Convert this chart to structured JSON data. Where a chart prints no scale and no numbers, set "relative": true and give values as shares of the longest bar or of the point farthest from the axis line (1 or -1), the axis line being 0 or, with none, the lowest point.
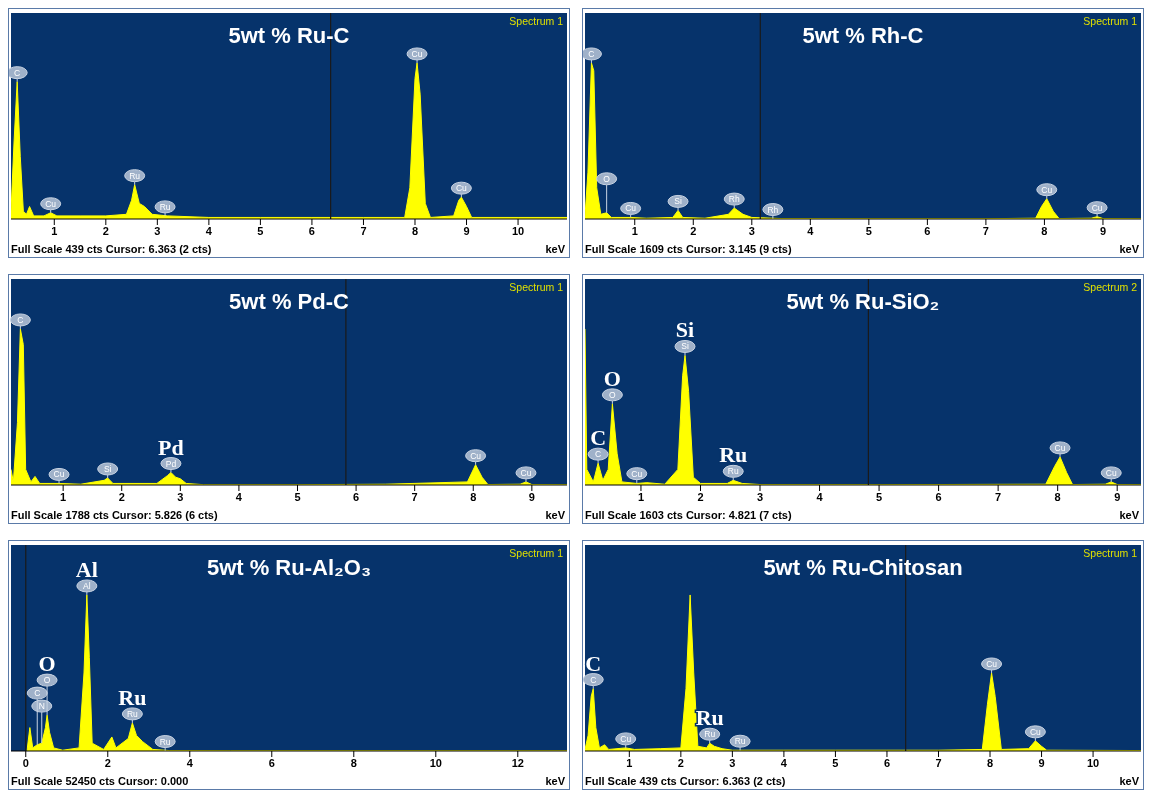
{
  "chart_data": [
    {
      "type": "area",
      "relative": true,
      "title": "5wt % Ru-C",
      "xlabel": "keV",
      "color": "#ffff00",
      "xlim": [
        0.16,
        10.95
      ],
      "xticks": [
        1,
        2,
        3,
        4,
        5,
        6,
        7,
        8,
        9,
        10
      ],
      "x": [
        0.16,
        0.22,
        0.28,
        0.34,
        0.4,
        0.46,
        0.52,
        0.6,
        0.8,
        0.93,
        1.05,
        1.5,
        2.0,
        2.4,
        2.5,
        2.56,
        2.65,
        2.75,
        2.9,
        3.2,
        4,
        5,
        6,
        7,
        7.8,
        7.9,
        8.0,
        8.04,
        8.1,
        8.2,
        8.3,
        8.75,
        8.85,
        8.9,
        9.0,
        9.1,
        10,
        10.95
      ],
      "values": [
        0.05,
        0.5,
        0.88,
        0.4,
        0.05,
        0.03,
        0.08,
        0.02,
        0.02,
        0.04,
        0.02,
        0.02,
        0.02,
        0.03,
        0.12,
        0.22,
        0.1,
        0.08,
        0.03,
        0.02,
        0.01,
        0.01,
        0.01,
        0.01,
        0.01,
        0.2,
        0.9,
        1,
        0.8,
        0.1,
        0.01,
        0.02,
        0.12,
        0.14,
        0.08,
        0.01,
        0.01,
        0.01
      ],
      "ref_lines": [
        {
          "axis": "x",
          "value": 6.363,
          "color": "#1a1a1a"
        }
      ],
      "annotations": [
        "Spectrum 1",
        "Full Scale 439 cts Cursor: 6.363  (2 cts)",
        {
          "text": "C",
          "x": 0.28,
          "y": 0.88
        },
        {
          "text": "Cu",
          "x": 0.93,
          "y": 0.04
        },
        {
          "text": "Ru",
          "x": 2.56,
          "y": 0.22
        },
        {
          "text": "Ru",
          "x": 3.15,
          "y": 0.02
        },
        {
          "text": "Cu",
          "x": 8.04,
          "y": 1
        },
        {
          "text": "Cu",
          "x": 8.9,
          "y": 0.14
        }
      ]
    },
    {
      "type": "area",
      "relative": true,
      "title": "5wt % Rh-C",
      "xlabel": "keV",
      "color": "#ffff00",
      "xlim": [
        0.15,
        9.65
      ],
      "xticks": [
        1,
        2,
        3,
        4,
        5,
        6,
        7,
        8,
        9
      ],
      "x": [
        0.15,
        0.2,
        0.26,
        0.3,
        0.35,
        0.42,
        0.52,
        0.6,
        0.93,
        1.2,
        1.65,
        1.74,
        1.82,
        2.2,
        2.6,
        2.7,
        2.85,
        3.0,
        3.5,
        5,
        7,
        7.85,
        7.95,
        8.04,
        8.15,
        8.25,
        8.8,
        8.9,
        9.0,
        9.65
      ],
      "values": [
        0.02,
        0.3,
        1,
        0.95,
        0.2,
        0.03,
        0.04,
        0.01,
        0.01,
        0.005,
        0.01,
        0.055,
        0.01,
        0.005,
        0.03,
        0.07,
        0.03,
        0.01,
        0.003,
        0.002,
        0.002,
        0.005,
        0.08,
        0.13,
        0.05,
        0.003,
        0.005,
        0.015,
        0.003,
        0.002
      ],
      "ref_lines": [
        {
          "axis": "x",
          "value": 3.145,
          "color": "#1a1a1a"
        }
      ],
      "annotations": [
        "Spectrum 1",
        "Full Scale 1609 cts Cursor: 3.145  (9 cts)",
        {
          "text": "C",
          "x": 0.26,
          "y": 1
        },
        {
          "text": "O",
          "x": 0.52,
          "y": 0.04
        },
        {
          "text": "Cu",
          "x": 0.93,
          "y": 0.01
        },
        {
          "text": "Si",
          "x": 1.74,
          "y": 0.055
        },
        {
          "text": "Rh",
          "x": 2.7,
          "y": 0.07
        },
        {
          "text": "Rh",
          "x": 3.36,
          "y": 0.003
        },
        {
          "text": "Cu",
          "x": 8.04,
          "y": 0.13
        },
        {
          "text": "Cu",
          "x": 8.9,
          "y": 0.015
        }
      ]
    },
    {
      "type": "area",
      "relative": true,
      "title": "5wt % Pd-C",
      "xlabel": "keV",
      "color": "#ffff00",
      "xlim": [
        0.11,
        9.6
      ],
      "xticks": [
        1,
        2,
        3,
        4,
        5,
        6,
        7,
        8,
        9
      ],
      "x": [
        0.11,
        0.15,
        0.22,
        0.27,
        0.32,
        0.36,
        0.45,
        0.52,
        0.6,
        0.93,
        1.3,
        1.7,
        1.76,
        1.85,
        2.6,
        2.78,
        2.84,
        2.92,
        3.0,
        3.1,
        3.4,
        5,
        6.5,
        7.9,
        8.04,
        8.15,
        8.25,
        8.8,
        8.9,
        9.0,
        9.6
      ],
      "values": [
        0.1,
        0.02,
        0.4,
        1,
        0.9,
        0.1,
        0.02,
        0.055,
        0.01,
        0.01,
        0.005,
        0.03,
        0.045,
        0.01,
        0.01,
        0.06,
        0.08,
        0.05,
        0.04,
        0.01,
        0.002,
        0.002,
        0.005,
        0.02,
        0.13,
        0.05,
        0.003,
        0.005,
        0.02,
        0.003,
        0.002
      ],
      "ref_lines": [
        {
          "axis": "x",
          "value": 5.826,
          "color": "#1a1a1a"
        }
      ],
      "annotations": [
        "Spectrum 1",
        "Full Scale 1788 cts Cursor: 5.826  (6 cts)",
        {
          "text": "C",
          "x": 0.27,
          "y": 1
        },
        {
          "text": "Cu",
          "x": 0.93,
          "y": 0.01
        },
        {
          "text": "Si",
          "x": 1.76,
          "y": 0.045
        },
        {
          "text": "Pd",
          "x": 2.84,
          "y": 0.08
        },
        {
          "text": "Pd",
          "x": 2.84,
          "y": 0.08
        },
        {
          "text": "Cu",
          "x": 8.04,
          "y": 0.13
        },
        {
          "text": "Cu",
          "x": 8.9,
          "y": 0.02
        }
      ]
    },
    {
      "type": "area",
      "relative": true,
      "title": "5wt % Ru-SiO₂",
      "xlabel": "keV",
      "color": "#ffff00",
      "xlim": [
        0.06,
        9.4
      ],
      "xticks": [
        1,
        2,
        3,
        4,
        5,
        6,
        7,
        8,
        9
      ],
      "x": [
        0.06,
        0.09,
        0.2,
        0.28,
        0.36,
        0.45,
        0.52,
        0.6,
        0.68,
        0.93,
        1.1,
        1.4,
        1.62,
        1.7,
        1.74,
        1.8,
        1.88,
        2.0,
        2.45,
        2.55,
        2.7,
        3,
        5,
        7.8,
        7.95,
        8.04,
        8.15,
        8.25,
        8.8,
        8.9,
        9.0,
        9.4
      ],
      "values": [
        1,
        0.1,
        0.02,
        0.14,
        0.03,
        0.1,
        0.52,
        0.2,
        0.02,
        0.01,
        0.015,
        0.005,
        0.1,
        0.7,
        0.83,
        0.6,
        0.05,
        0.01,
        0.01,
        0.03,
        0.01,
        0.003,
        0.002,
        0.005,
        0.12,
        0.18,
        0.08,
        0.003,
        0.005,
        0.02,
        0.003,
        0.002
      ],
      "ref_lines": [
        {
          "axis": "x",
          "value": 4.821,
          "color": "#1a1a1a"
        }
      ],
      "annotations": [
        "Spectrum 2",
        "Full Scale 1603 cts Cursor: 4.821  (7 cts)",
        {
          "text": "C",
          "x": 0.28,
          "y": 0.14
        },
        {
          "text": "C",
          "x": 0.28,
          "y": 0.14
        },
        {
          "text": "O",
          "x": 0.52,
          "y": 0.52
        },
        {
          "text": "O",
          "x": 0.52,
          "y": 0.52
        },
        {
          "text": "Cu",
          "x": 0.93,
          "y": 0.01
        },
        {
          "text": "Si",
          "x": 1.74,
          "y": 0.83
        },
        {
          "text": "Si",
          "x": 1.74,
          "y": 0.83
        },
        {
          "text": "Ru",
          "x": 2.55,
          "y": 0.03
        },
        {
          "text": "Ru",
          "x": 2.55,
          "y": 0.03
        },
        {
          "text": "Cu",
          "x": 8.04,
          "y": 0.18
        },
        {
          "text": "Cu",
          "x": 8.9,
          "y": 0.02
        }
      ]
    },
    {
      "type": "area",
      "relative": true,
      "title": "5wt % Ru-Al₂O₃",
      "xlabel": "keV",
      "color": "#ffff00",
      "xlim": [
        -0.36,
        13.2
      ],
      "xticks": [
        0,
        2,
        4,
        6,
        8,
        10,
        12
      ],
      "x": [
        0.03,
        0.1,
        0.17,
        0.28,
        0.39,
        0.48,
        0.52,
        0.58,
        0.68,
        0.9,
        1.3,
        1.42,
        1.49,
        1.55,
        1.62,
        1.9,
        2.05,
        2.1,
        2.2,
        2.5,
        2.6,
        2.7,
        2.85,
        3.1,
        3.5,
        5,
        13.2
      ],
      "values": [
        0,
        0.15,
        0.02,
        0.04,
        0.05,
        0.15,
        0.23,
        0.12,
        0.02,
        0.005,
        0.02,
        0.5,
        1,
        0.6,
        0.05,
        0.01,
        0.07,
        0.09,
        0.02,
        0.08,
        0.18,
        0.1,
        0.06,
        0.01,
        0.003,
        0.002,
        0.002
      ],
      "ref_lines": [
        {
          "axis": "x",
          "value": 0,
          "color": "#1a1a1a"
        }
      ],
      "annotations": [
        "Spectrum 1",
        "Full Scale 52450 cts Cursor: 0.000",
        {
          "text": "N",
          "x": 0.39,
          "y": 0.05
        },
        {
          "text": "C",
          "x": 0.28,
          "y": 0.04
        },
        {
          "text": "O",
          "x": 0.52,
          "y": 0.23
        },
        {
          "text": "O",
          "x": 0.52,
          "y": 0.23
        },
        {
          "text": "Al",
          "x": 1.49,
          "y": 1
        },
        {
          "text": "Al",
          "x": 1.49,
          "y": 1
        },
        {
          "text": "Ru",
          "x": 2.6,
          "y": 0.18
        },
        {
          "text": "Ru",
          "x": 2.6,
          "y": 0.18
        },
        {
          "text": "Ru",
          "x": 3.4,
          "y": 0.003
        }
      ]
    },
    {
      "type": "area",
      "relative": true,
      "title": "5wt % Ru-Chitosan",
      "xlabel": "keV",
      "color": "#ffff00",
      "xlim": [
        0.14,
        10.93
      ],
      "xticks": [
        1,
        2,
        3,
        4,
        5,
        6,
        7,
        8,
        9,
        10
      ],
      "x": [
        0.14,
        0.2,
        0.26,
        0.3,
        0.35,
        0.42,
        0.52,
        0.6,
        0.93,
        1.1,
        1.6,
        2.0,
        2.1,
        2.18,
        2.25,
        2.33,
        2.5,
        2.56,
        2.65,
        2.8,
        3.0,
        4,
        5,
        6,
        7,
        7.85,
        7.95,
        8.03,
        8.1,
        8.22,
        8.75,
        8.88,
        9.0,
        9.1,
        10.93
      ],
      "values": [
        0.01,
        0.1,
        0.35,
        0.4,
        0.15,
        0.02,
        0.04,
        0.01,
        0.02,
        0.01,
        0.015,
        0.02,
        0.4,
        1,
        0.5,
        0.03,
        0.02,
        0.05,
        0.03,
        0.015,
        0.005,
        0.005,
        0.005,
        0.005,
        0.005,
        0.01,
        0.3,
        0.5,
        0.35,
        0.01,
        0.015,
        0.065,
        0.03,
        0.005,
        0.003
      ],
      "ref_lines": [
        {
          "axis": "x",
          "value": 6.363,
          "color": "#1a1a1a"
        }
      ],
      "annotations": [
        "Spectrum 1",
        "Full Scale 439 cts Cursor: 6.363  (2 cts)",
        {
          "text": "C",
          "x": 0.3,
          "y": 0.4
        },
        {
          "text": "C",
          "x": 0.3,
          "y": 0.4
        },
        {
          "text": "Cu",
          "x": 0.93,
          "y": 0.02
        },
        {
          "text": "Ru",
          "x": 2.56,
          "y": 0.05
        },
        {
          "text": "Ru",
          "x": 2.56,
          "y": 0.05
        },
        {
          "text": "Ru",
          "x": 3.15,
          "y": 0.005
        },
        {
          "text": "Cu",
          "x": 8.03,
          "y": 0.5
        },
        {
          "text": "Cu",
          "x": 8.88,
          "y": 0.065
        }
      ]
    }
  ]
}
